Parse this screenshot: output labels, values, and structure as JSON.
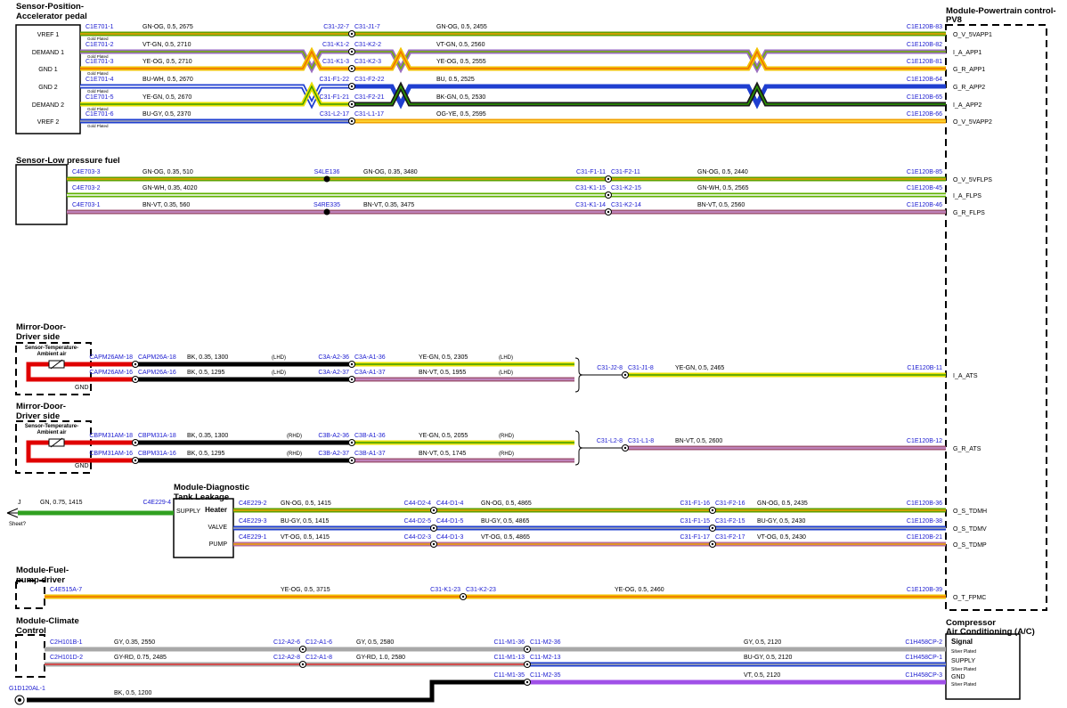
{
  "sections": [
    {
      "title": [
        "Sensor-Position-",
        "Accelerator pedal"
      ],
      "pins": [
        "VREF 1",
        "DEMAND 1",
        "GND 1",
        "GND 2",
        "DEMAND 2",
        "VREF 2"
      ],
      "wires": [
        {
          "start": "C1E701-1",
          "plating": "Gold Plated",
          "specs": [
            "GN-OG, 0.5, 2675",
            "GN-OG, 0.5, 2455"
          ],
          "joints": [
            [
              "C31-J2-7",
              "C31-J1-7"
            ]
          ],
          "end": "C1E120B-83",
          "pin": "O_V_5VAPP1",
          "colors": [
            [
              "#5fa000",
              "#f0a000"
            ],
            [
              "#5fa000",
              "#f0a000"
            ]
          ]
        },
        {
          "start": "C1E701-2",
          "plating": "Gold Plated",
          "specs": [
            "VT-GN, 0.5, 2710",
            "VT-GN, 0.5, 2560"
          ],
          "joints": [
            [
              "C31-K1-2",
              "C31-K2-2"
            ]
          ],
          "end": "C1E120B-82",
          "pin": "I_A_APP1",
          "colors": [
            [
              "#9a6ec0",
              "#70b000"
            ],
            [
              "#9a6ec0",
              "#70b000"
            ]
          ]
        },
        {
          "start": "C1E701-3",
          "plating": "Gold Plated",
          "specs": [
            "YE-OG, 0.5, 2710",
            "YE-OG, 0.5, 2555"
          ],
          "joints": [
            [
              "C31-K1-3",
              "C31-K2-3"
            ]
          ],
          "end": "C1E120B-81",
          "pin": "G_R_APP1",
          "colors": [
            [
              "#f2c200",
              "#f07000"
            ],
            [
              "#f2c200",
              "#f07000"
            ]
          ]
        },
        {
          "start": "C1E701-4",
          "plating": "Gold Plated",
          "specs": [
            "BU-WH, 0.5, 2670",
            "BU, 0.5, 2525"
          ],
          "joints": [
            [
              "C31-F1-22",
              "C31-F2-22"
            ]
          ],
          "end": "C1E120B-64",
          "pin": "G_R_APP2",
          "colors": [
            [
              "#1f3fd0",
              "#ffffff"
            ],
            [
              "#1f3fd0"
            ]
          ]
        },
        {
          "start": "C1E701-5",
          "plating": "Gold Plated",
          "specs": [
            "YE-GN, 0.5, 2670",
            "BK-GN, 0.5, 2530"
          ],
          "joints": [
            [
              "C31-F1-21",
              "C31-F2-21"
            ]
          ],
          "end": "C1E120B-65",
          "pin": "I_A_APP2",
          "colors": [
            [
              "#e8e000",
              "#3c9a00"
            ],
            [
              "#1a1a1a",
              "#2a9a00"
            ]
          ]
        },
        {
          "start": "C1E701-6",
          "plating": "Gold Plated",
          "specs": [
            "BU-GY, 0.5, 2370",
            "OG-YE, 0.5, 2595"
          ],
          "joints": [
            [
              "C31-L2-17",
              "C31-L1-17"
            ]
          ],
          "end": "C1E120B-66",
          "pin": "O_V_5VAPP2",
          "colors": [
            [
              "#1f3fd0",
              "#b0b0b0"
            ],
            [
              "#f0a000",
              "#ffe040"
            ]
          ]
        }
      ]
    },
    {
      "title": [
        "Sensor-Low pressure fuel"
      ],
      "wires": [
        {
          "start": "C4E703-3",
          "specs": [
            "GN-OG, 0.35, 510",
            "GN-OG, 0.35, 3480",
            "GN-OG, 0.5, 2440"
          ],
          "joints": [
            [
              "S4LE136"
            ],
            [
              "C31-F1-11",
              "C31-F2-11"
            ]
          ],
          "end": "C1E120B-85",
          "pin": "O_V_5VFLPS",
          "colors": [
            [
              "#5fa000",
              "#f0a000"
            ],
            [
              "#5fa000",
              "#f0a000"
            ],
            [
              "#5fa000",
              "#f0a000"
            ]
          ]
        },
        {
          "start": "C4E703-2",
          "specs": [
            "GN-WH, 0.35, 4020",
            "GN-WH, 0.5, 2565"
          ],
          "joints": [
            [
              "C31-K1-15",
              "C31-K2-15"
            ]
          ],
          "end": "C1E120B-45",
          "pin": "I_A_FLPS",
          "colors": [
            [
              "#5fb000",
              "#ffffff"
            ],
            [
              "#5fb000",
              "#ffffff"
            ]
          ]
        },
        {
          "start": "C4E703-1",
          "specs": [
            "BN-VT, 0.35, 560",
            "BN-VT, 0.35, 3475",
            "BN-VT, 0.5, 2560"
          ],
          "joints": [
            [
              "S4RE335"
            ],
            [
              "C31-K1-14",
              "C31-K2-14"
            ]
          ],
          "end": "C1E120B-46",
          "pin": "G_R_FLPS",
          "colors": [
            [
              "#a05878",
              "#c890d0"
            ],
            [
              "#a05878",
              "#c890d0"
            ],
            [
              "#a05878",
              "#c890d0"
            ]
          ]
        }
      ]
    },
    {
      "title": [
        "Mirror-Door-",
        "Driver side"
      ],
      "sensor": [
        "Sensor-Temperature-",
        "Ambient air"
      ],
      "gnd": "GND",
      "wires": [
        {
          "specs": [
            "BK, 0.35, 1300",
            "YE-GN, 0.5, 2305"
          ],
          "notes": [
            "(LHD)",
            "(LHD)"
          ],
          "joints": [
            [
              "CAPM26AM-18",
              "CAPM26A-18"
            ],
            [
              "C3A-A2-36",
              "C3A-A1-36"
            ]
          ],
          "colors": [
            [
              "#e00000"
            ],
            [
              "#000000"
            ],
            [
              "#e8e000",
              "#3c9a00"
            ]
          ]
        },
        {
          "specs": [
            "BK, 0.5, 1295",
            "BN-VT, 0.5, 1955"
          ],
          "notes": [
            "(LHD)",
            "(LHD)"
          ],
          "joints": [
            [
              "CAPM26AM-16",
              "CAPM26A-16"
            ],
            [
              "C3A-A2-37",
              "C3A-A1-37"
            ]
          ],
          "colors": [
            [
              "#e00000"
            ],
            [
              "#000000"
            ],
            [
              "#a05878",
              "#c890d0"
            ]
          ]
        }
      ]
    },
    {
      "title": [
        "Mirror-Door-",
        "Driver side"
      ],
      "sensor": [
        "Sensor-Temperature-",
        "Ambient air"
      ],
      "gnd": "GND",
      "wires": [
        {
          "specs": [
            "BK, 0.35, 1300",
            "YE-GN, 0.5, 2055"
          ],
          "notes": [
            "(RHD)",
            "(RHD)"
          ],
          "joints": [
            [
              "CBPM31AM-18",
              "CBPM31A-18"
            ],
            [
              "C3B-A2-36",
              "C3B-A1-36"
            ]
          ],
          "colors": [
            [
              "#e00000"
            ],
            [
              "#000000"
            ],
            [
              "#e8e000",
              "#3c9a00"
            ]
          ]
        },
        {
          "specs": [
            "BK, 0.5, 1295",
            "BN-VT, 0.5, 1745"
          ],
          "notes": [
            "(RHD)",
            "(RHD)"
          ],
          "joints": [
            [
              "CBPM31AM-16",
              "CBPM31A-16"
            ],
            [
              "C3B-A2-37",
              "C3B-A1-37"
            ]
          ],
          "colors": [
            [
              "#e00000"
            ],
            [
              "#000000"
            ],
            [
              "#a05878",
              "#c890d0"
            ]
          ]
        }
      ]
    },
    {
      "wires": [
        {
          "specs": [
            "YE-GN, 0.5, 2465"
          ],
          "joints": [
            [
              "C31-J2-8",
              "C31-J1-8"
            ]
          ],
          "end": "C1E120B-11",
          "pin": "I_A_ATS",
          "colors": [
            [
              "#000000"
            ],
            [
              "#e8e000",
              "#3c9a00"
            ]
          ]
        },
        {
          "specs": [
            "BN-VT, 0.5, 2600"
          ],
          "joints": [
            [
              "C31-L2-8",
              "C31-L1-8"
            ]
          ],
          "end": "C1E120B-12",
          "pin": "G_R_ATS",
          "colors": [
            [
              "#000000"
            ],
            [
              "#a05878",
              "#c890d0"
            ]
          ]
        }
      ]
    },
    {
      "title": [
        "Module-Diagnostic",
        "Tank Leakage"
      ],
      "pins": [
        "SUPPLY",
        "Heater",
        "VALVE",
        "PUMP"
      ],
      "input": {
        "ref": "J",
        "spec": "GN, 0.75, 1415",
        "end": "C4E229-4",
        "sheet": "Sheet?",
        "color": [
          "#30a020"
        ]
      },
      "wires": [
        {
          "start": "C4E229-2",
          "specs": [
            "GN-OG, 0.5, 1415",
            "GN-OG, 0.5, 4865",
            "GN-OG, 0.5, 2435"
          ],
          "joints": [
            [
              "C44-D2-4",
              "C44-D1-4"
            ],
            [
              "C31-F1-16",
              "C31-F2-16"
            ]
          ],
          "end": "C1E120B-36",
          "pin": "O_S_TDMH",
          "colors": [
            [
              "#5fa000",
              "#f0a000"
            ],
            [
              "#5fa000",
              "#f0a000"
            ],
            [
              "#5fa000",
              "#f0a000"
            ]
          ]
        },
        {
          "start": "C4E229-3",
          "specs": [
            "BU-GY, 0.5, 1415",
            "BU-GY, 0.5, 4865",
            "BU-GY, 0.5, 2430"
          ],
          "joints": [
            [
              "C44-D2-5",
              "C44-D1-5"
            ],
            [
              "C31-F1-15",
              "C31-F2-15"
            ]
          ],
          "end": "C1E120B-38",
          "pin": "O_S_TDMV",
          "colors": [
            [
              "#1f3fd0",
              "#b0b0b0"
            ],
            [
              "#1f3fd0",
              "#b0b0b0"
            ],
            [
              "#1f3fd0",
              "#b0b0b0"
            ]
          ]
        },
        {
          "start": "C4E229-1",
          "specs": [
            "VT-OG, 0.5, 1415",
            "VT-OG, 0.5, 4865",
            "VT-OG, 0.5, 2430"
          ],
          "joints": [
            [
              "C44-D2-3",
              "C44-D1-3"
            ],
            [
              "C31-F1-17",
              "C31-F2-17"
            ]
          ],
          "end": "C1E120B-21",
          "pin": "O_S_TDMP",
          "colors": [
            [
              "#b87098",
              "#f0a000"
            ],
            [
              "#b87098",
              "#f0a000"
            ],
            [
              "#b87098",
              "#f0a000"
            ]
          ]
        }
      ]
    },
    {
      "title": [
        "Module-Fuel-",
        "pump driver"
      ],
      "wires": [
        {
          "start": "C4E515A-7",
          "specs": [
            "YE-OG, 0.5, 3715",
            "YE-OG, 0.5, 2460"
          ],
          "joints": [
            [
              "C31-K1-23",
              "C31-K2-23"
            ]
          ],
          "end": "C1E120B-39",
          "pin": "O_T_FPMC",
          "colors": [
            [
              "#f2c200",
              "#f07000"
            ],
            [
              "#f2c200",
              "#f07000"
            ]
          ]
        }
      ]
    },
    {
      "title": [
        "Module-Climate",
        "Control"
      ],
      "wires": [
        {
          "start": "C2H101B-1",
          "specs": [
            "GY, 0.35, 2550",
            "GY, 0.5, 2580",
            "GY, 0.5, 2120"
          ],
          "joints": [
            [
              "C12-A2-6",
              "C12-A1-6"
            ],
            [
              "C11-M1-36",
              "C11-M2-36"
            ]
          ],
          "end": "C1H458CP-2",
          "colors": [
            [
              "#a8a8a8"
            ],
            [
              "#a8a8a8"
            ],
            [
              "#a8a8a8"
            ]
          ]
        },
        {
          "start": "C2H101D-2",
          "specs": [
            "GY-RD, 0.75, 2485",
            "GY-RD, 1.0, 2580",
            "BU-GY, 0.5, 2120"
          ],
          "joints": [
            [
              "C12-A2-8",
              "C12-A1-8"
            ],
            [
              "C11-M1-13",
              "C11-M2-13"
            ]
          ],
          "end": "C1H458CP-1",
          "colors": [
            [
              "#a8a8a8",
              "#e03030"
            ],
            [
              "#a8a8a8",
              "#e03030"
            ],
            [
              "#1f3fd0",
              "#b0b0b0"
            ]
          ]
        },
        {
          "start": "G1D120AL-1",
          "specs": [
            "BK, 0.5, 1200",
            "VT, 0.5, 2120"
          ],
          "joints": [
            [
              "C11-M1-35",
              "C11-M2-35"
            ]
          ],
          "end": "C1H458CP-3",
          "colors": [
            [
              "#000000"
            ],
            [
              "#a050e8"
            ]
          ]
        }
      ]
    }
  ],
  "powertrain": {
    "title": [
      "Module-Powertrain control-",
      "PV8"
    ]
  },
  "compressor": {
    "title": [
      "Compressor",
      "Air Conditioning (A/C)"
    ],
    "pins": [
      "Signal",
      "Silver Plated",
      "SUPPLY",
      "Silver Plated",
      "GND",
      "Silver Plated"
    ]
  }
}
